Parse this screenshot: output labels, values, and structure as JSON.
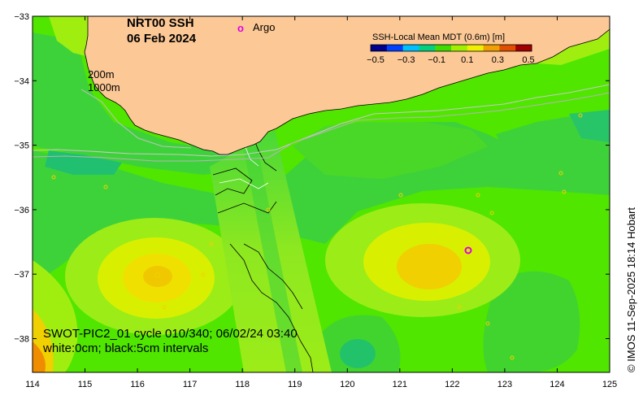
{
  "title": {
    "product": "NRT00 SSH",
    "date": "06 Feb 2024"
  },
  "legend": {
    "argo_symbol": "o",
    "argo_label": "Argo",
    "argo_color": "#e000e0"
  },
  "isobaths": {
    "shallow_label": "200m",
    "deep_label": "1000m"
  },
  "colorbar": {
    "title": "SSH-Local Mean MDT (0.6m) [m]",
    "tick_labels": [
      "−0.5",
      "−0.3",
      "−0.1",
      "0.1",
      "0.3",
      "0.5"
    ],
    "colors": [
      "#00008c",
      "#0040ff",
      "#00c0ff",
      "#00d080",
      "#40dc00",
      "#a0f000",
      "#f0f000",
      "#f0a000",
      "#e05000",
      "#a00000"
    ]
  },
  "axes": {
    "x_ticks": [
      "114",
      "115",
      "116",
      "117",
      "118",
      "119",
      "120",
      "121",
      "122",
      "123",
      "124",
      "125"
    ],
    "y_ticks": [
      "−33",
      "−34",
      "−35",
      "−36",
      "−37",
      "−38"
    ]
  },
  "swot": {
    "line1": "SWOT-PIC2_01 cycle 010/340; 06/02/24 03:40",
    "line2": "white:0cm; black:5cm intervals"
  },
  "credit": "© IMOS 11-Sep-2025 18:14 Hobart",
  "colors": {
    "land": "#fcc896",
    "background": "#50e600"
  }
}
